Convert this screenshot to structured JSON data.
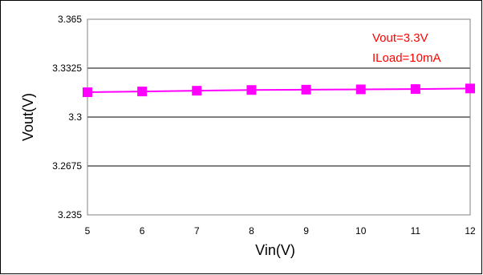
{
  "chart_data": {
    "type": "line",
    "xlabel": "Vin(V)",
    "ylabel": "Vout(V)",
    "xlim": [
      5,
      12
    ],
    "ylim": [
      3.235,
      3.365
    ],
    "x_ticks": [
      "5",
      "6",
      "7",
      "8",
      "9",
      "10",
      "11",
      "12"
    ],
    "y_ticks": [
      "3.235",
      "3.2675",
      "3.3",
      "3.3325",
      "3.365"
    ],
    "grid": "horizontal",
    "annotations": [
      "Vout=3.3V",
      "ILoad=10mA"
    ],
    "annotation_color": "#ff0000",
    "series": [
      {
        "color": "#ff00ff",
        "marker": "square",
        "x": [
          5,
          6,
          7,
          8,
          9,
          10,
          11,
          12
        ],
        "y": [
          3.3165,
          3.317,
          3.3175,
          3.318,
          3.3182,
          3.3184,
          3.3186,
          3.319
        ]
      }
    ]
  }
}
